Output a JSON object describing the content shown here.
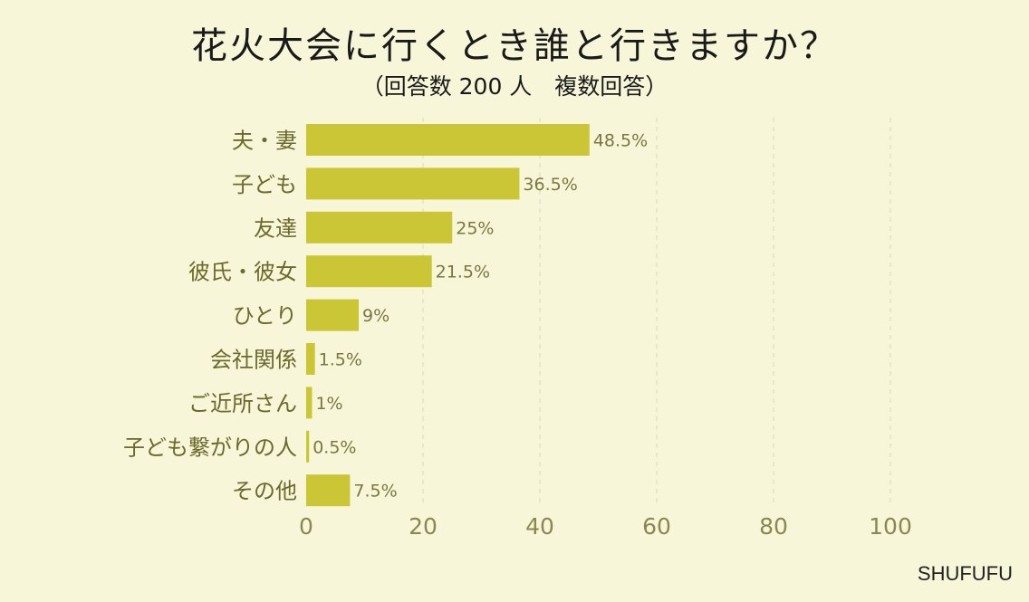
{
  "title": "花火大会に行くとき誰と行きますか？",
  "subtitle": "（回答数 200 人　複数回答）",
  "brand": "SHUFUFU",
  "colors": {
    "bar": "#cbc635",
    "background": "#f7f6d8",
    "grid": "#d9d8c0"
  },
  "chart_data": {
    "type": "bar",
    "orientation": "horizontal",
    "categories": [
      "夫・妻",
      "子ども",
      "友達",
      "彼氏・彼女",
      "ひとり",
      "会社関係",
      "ご近所さん",
      "子ども繋がりの人",
      "その他"
    ],
    "values": [
      48.5,
      36.5,
      25,
      21.5,
      9,
      1.5,
      1,
      0.5,
      7.5
    ],
    "value_labels": [
      "48.5%",
      "36.5%",
      "25%",
      "21.5%",
      "9%",
      "1.5%",
      "1%",
      "0.5%",
      "7.5%"
    ],
    "xlim": [
      0,
      100
    ],
    "xticks": [
      0,
      20,
      40,
      60,
      80,
      100
    ],
    "xtick_labels": [
      "0",
      "20",
      "40",
      "60",
      "80",
      "100"
    ],
    "grid": "vertical dashed"
  }
}
